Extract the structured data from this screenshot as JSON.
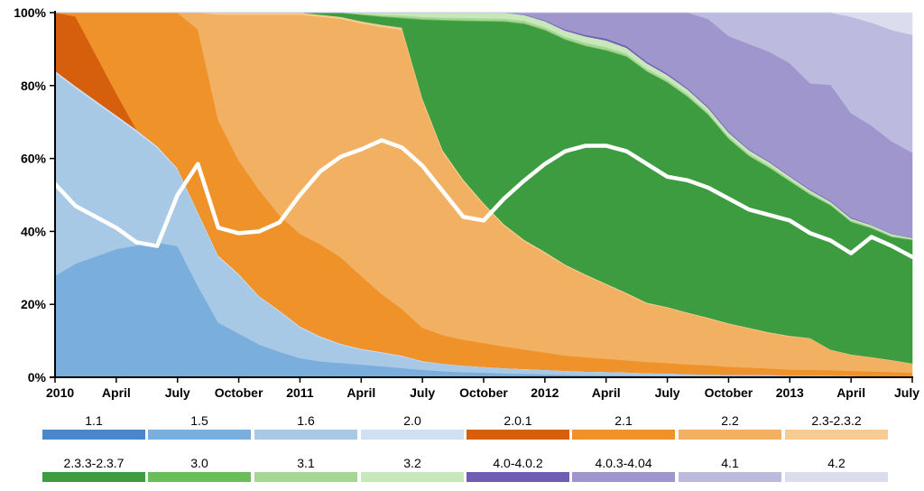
{
  "chart_data": {
    "type": "area",
    "stacked": true,
    "normalized": true,
    "title": "",
    "xlabel": "",
    "ylabel": "",
    "ylim": [
      0,
      100
    ],
    "y_ticks": [
      "0%",
      "20%",
      "40%",
      "60%",
      "80%",
      "100%"
    ],
    "x_ticks": [
      "2010",
      "April",
      "July",
      "October",
      "2011",
      "April",
      "July",
      "October",
      "2012",
      "April",
      "July",
      "October",
      "2013",
      "April",
      "July"
    ],
    "x_range_months": [
      0,
      42
    ],
    "grid": false,
    "months": [
      0,
      1,
      3,
      4,
      5,
      6,
      7,
      8,
      9,
      10,
      11,
      12,
      13,
      14,
      15,
      16,
      17,
      18,
      19,
      20,
      21,
      22,
      23,
      24,
      25,
      26,
      27,
      28,
      29,
      30,
      31,
      32,
      33,
      34,
      35,
      36,
      37,
      38,
      39,
      40,
      41,
      42
    ],
    "series": [
      {
        "name": "1.1",
        "color": "#4a87c8",
        "values": [
          0,
          0,
          0,
          0,
          0,
          0,
          0,
          0,
          0,
          0,
          0,
          0,
          0,
          0,
          0,
          0,
          0,
          0,
          0,
          0,
          0,
          0,
          0,
          0,
          0,
          0,
          0,
          0,
          0,
          0,
          0,
          0,
          0,
          0,
          0,
          0,
          0,
          0,
          0,
          0,
          0,
          0
        ]
      },
      {
        "name": "1.5",
        "color": "#7aaedc",
        "values": [
          28,
          31,
          35,
          36,
          37,
          36,
          25,
          15,
          12,
          9,
          7,
          5,
          4,
          3.5,
          3,
          2.5,
          2,
          1.8,
          1.5,
          1.3,
          1.2,
          1,
          0.9,
          0.8,
          0.7,
          0.6,
          0.5,
          0.5,
          0.4,
          0.3,
          0.3,
          0.2,
          0.2,
          0.2,
          0.2,
          0.1,
          0.1,
          0.1,
          0.1,
          0,
          0,
          0
        ]
      },
      {
        "name": "1.6",
        "color": "#a8c9e6",
        "values": [
          56,
          48,
          36,
          31,
          26,
          21,
          20,
          18,
          16,
          13,
          11,
          8,
          6,
          4.5,
          3.5,
          3,
          2.5,
          2,
          1.8,
          1.6,
          1.4,
          1.3,
          1.2,
          1.1,
          1,
          0.9,
          0.9,
          0.8,
          0.7,
          0.7,
          0.6,
          0.6,
          0.5,
          0.5,
          0.5,
          0.4,
          0.4,
          0.4,
          0.3,
          0.3,
          0.3,
          0.2
        ]
      },
      {
        "name": "2.0",
        "color": "#cfe0f3",
        "values": [
          0.5,
          0.5,
          0.5,
          0.5,
          0.5,
          0.4,
          0.4,
          0.4,
          0.4,
          0.3,
          0.3,
          0.3,
          0.3,
          0.2,
          0.2,
          0.2,
          0.2,
          0.2,
          0.1,
          0.1,
          0.1,
          0.1,
          0.1,
          0.1,
          0.1,
          0.1,
          0.1,
          0.1,
          0.1,
          0.1,
          0,
          0,
          0,
          0,
          0,
          0,
          0,
          0,
          0,
          0,
          0,
          0
        ]
      },
      {
        "name": "2.0.1",
        "color": "#d65f0e",
        "values": [
          16,
          19,
          6,
          0,
          0,
          0,
          0,
          0,
          0,
          0,
          0,
          0,
          0,
          0,
          0,
          0,
          0,
          0,
          0,
          0,
          0,
          0,
          0,
          0,
          0,
          0,
          0,
          0,
          0,
          0,
          0,
          0,
          0,
          0,
          0,
          0,
          0,
          0,
          0,
          0,
          0,
          0
        ]
      },
      {
        "name": "2.1",
        "color": "#ef922a",
        "values": [
          0,
          1,
          22,
          32,
          36.5,
          42.6,
          50,
          37,
          31,
          29,
          26,
          24,
          23,
          21,
          17,
          13,
          10,
          8,
          7,
          6.5,
          6,
          5.5,
          5,
          4.5,
          4,
          3.8,
          3.5,
          3.2,
          3,
          2.8,
          2.5,
          2.3,
          2,
          1.8,
          1.6,
          1.5,
          1.4,
          1.3,
          1.2,
          1.2,
          1.1,
          1
        ]
      },
      {
        "name": "2.2",
        "color": "#f2b162",
        "values": [
          0,
          0,
          0,
          0,
          0,
          0,
          4.6,
          29,
          40,
          48,
          55,
          57,
          57,
          58,
          59,
          60,
          60,
          55,
          45,
          40,
          35,
          31,
          28,
          26,
          24,
          22,
          20,
          18,
          16,
          15,
          13.5,
          12,
          11,
          10,
          9,
          8.5,
          8,
          5,
          4,
          3.5,
          3,
          2.5
        ]
      },
      {
        "name": "2.3-2.3.2",
        "color": "#f6cc92",
        "values": [
          0,
          0,
          0,
          0,
          0,
          0,
          0,
          0.5,
          0.5,
          0.5,
          0.5,
          0.5,
          0.5,
          0.5,
          0.5,
          0.5,
          0.5,
          0.5,
          0.5,
          0.5,
          0.4,
          0.4,
          0.4,
          0.4,
          0.3,
          0.3,
          0.3,
          0.3,
          0.3,
          0.2,
          0.2,
          0.2,
          0.2,
          0.2,
          0.2,
          0.2,
          0.1,
          0.1,
          0.1,
          0.1,
          0.1,
          0.1
        ]
      },
      {
        "name": "2.3.3-2.3.7",
        "color": "#3d9c3f",
        "values": [
          0,
          0,
          0,
          0,
          0,
          0,
          0,
          0,
          0,
          0,
          0,
          0,
          0.5,
          1,
          1.5,
          1.8,
          2,
          19,
          32,
          40,
          46,
          52,
          56,
          58,
          60,
          61.5,
          63,
          64,
          63.5,
          61,
          57,
          52,
          47.5,
          44,
          42,
          39.8,
          36.5,
          36,
          33,
          32.5,
          32,
          33.5
        ]
      },
      {
        "name": "3.0",
        "color": "#6cbc5e",
        "values": [
          0,
          0,
          0,
          0,
          0,
          0,
          0,
          0,
          0,
          0,
          0,
          0,
          0,
          0,
          0.1,
          0.1,
          0.2,
          0.2,
          0.2,
          0.2,
          0.2,
          0.2,
          0.2,
          0.2,
          0.2,
          0.2,
          0.2,
          0.2,
          0.1,
          0.1,
          0.1,
          0.1,
          0.1,
          0.1,
          0.1,
          0.1,
          0.1,
          0.1,
          0.1,
          0.1,
          0.1,
          0.1
        ]
      },
      {
        "name": "3.1",
        "color": "#a6d694",
        "values": [
          0,
          0,
          0,
          0,
          0,
          0,
          0,
          0,
          0,
          0,
          0,
          0,
          0,
          0,
          0.2,
          0.3,
          0.4,
          0.5,
          0.5,
          0.6,
          0.6,
          0.6,
          0.6,
          0.6,
          0.6,
          0.7,
          0.7,
          0.6,
          0.6,
          0.6,
          0.6,
          0.5,
          0.5,
          0.5,
          0.5,
          0.4,
          0.4,
          0.3,
          0.3,
          0.3,
          0.3,
          0.2
        ]
      },
      {
        "name": "3.2",
        "color": "#c8e8bc",
        "values": [
          0,
          0,
          0,
          0,
          0,
          0,
          0,
          0,
          0,
          0,
          0,
          0,
          0,
          0,
          0.2,
          0.5,
          0.6,
          1,
          1.2,
          1.3,
          1.4,
          1.5,
          1.5,
          1.6,
          1.6,
          1.7,
          1.8,
          1.6,
          1.5,
          1.3,
          1.2,
          1.1,
          1,
          0.9,
          0.8,
          0.7,
          0.6,
          0.5,
          0.5,
          0.4,
          0.4,
          0.3
        ]
      },
      {
        "name": "4.0-4.0.2",
        "color": "#6f5db3",
        "values": [
          0,
          0,
          0,
          0,
          0,
          0,
          0,
          0,
          0,
          0,
          0,
          0,
          0,
          0,
          0,
          0,
          0,
          0,
          0,
          0,
          0,
          0,
          0.1,
          0.2,
          0.3,
          0.4,
          0.5,
          0.5,
          0.4,
          0.4,
          0.3,
          0.3,
          0.3,
          0.2,
          0.2,
          0.2,
          0.2,
          0.2,
          0.2,
          0.1,
          0.1,
          0.1
        ]
      },
      {
        "name": "4.0.3-4.04",
        "color": "#9e96cd",
        "values": [
          0,
          0,
          0,
          0,
          0,
          0,
          0,
          0,
          0,
          0,
          0,
          0,
          0,
          0,
          0,
          0,
          0,
          0,
          0,
          0,
          0,
          0,
          0.5,
          2,
          4.5,
          6,
          7,
          9,
          13.5,
          16.5,
          20,
          22.5,
          24.5,
          27,
          28,
          29,
          27,
          29,
          26,
          25,
          24,
          23
        ]
      },
      {
        "name": "4.1",
        "color": "#bcbadf",
        "values": [
          0,
          0,
          0,
          0,
          0,
          0,
          0,
          0,
          0,
          0,
          0,
          0,
          0,
          0,
          0,
          0,
          0,
          0,
          0,
          0,
          0,
          0,
          0,
          0,
          0,
          0,
          0,
          0,
          0,
          0,
          0,
          1.6,
          6,
          8,
          10,
          13,
          18,
          18,
          24,
          26,
          29,
          32
        ]
      },
      {
        "name": "4.2",
        "color": "#dcdcef",
        "values": [
          0,
          0,
          0,
          0,
          0,
          0,
          0,
          0,
          0,
          0,
          0,
          0,
          0,
          0,
          0,
          0,
          0,
          0,
          0,
          0,
          0,
          0,
          0,
          0,
          0,
          0,
          0,
          0,
          0,
          0,
          0,
          0,
          0,
          0,
          0,
          0,
          0,
          0,
          1,
          2.5,
          4.5,
          6
        ]
      }
    ],
    "overlay_line": {
      "name": "",
      "color": "#ffffff",
      "values": [
        53,
        47,
        41,
        37,
        36,
        50,
        58.5,
        41,
        39.5,
        40,
        42.5,
        50,
        56.5,
        60.5,
        62.5,
        65,
        63,
        58,
        51,
        44,
        43,
        49,
        54,
        58.5,
        62,
        63.5,
        63.5,
        62,
        58.5,
        55,
        54,
        52,
        49,
        46,
        44.5,
        43,
        39.5,
        37.5,
        34,
        38.5,
        36,
        33
      ]
    }
  }
}
